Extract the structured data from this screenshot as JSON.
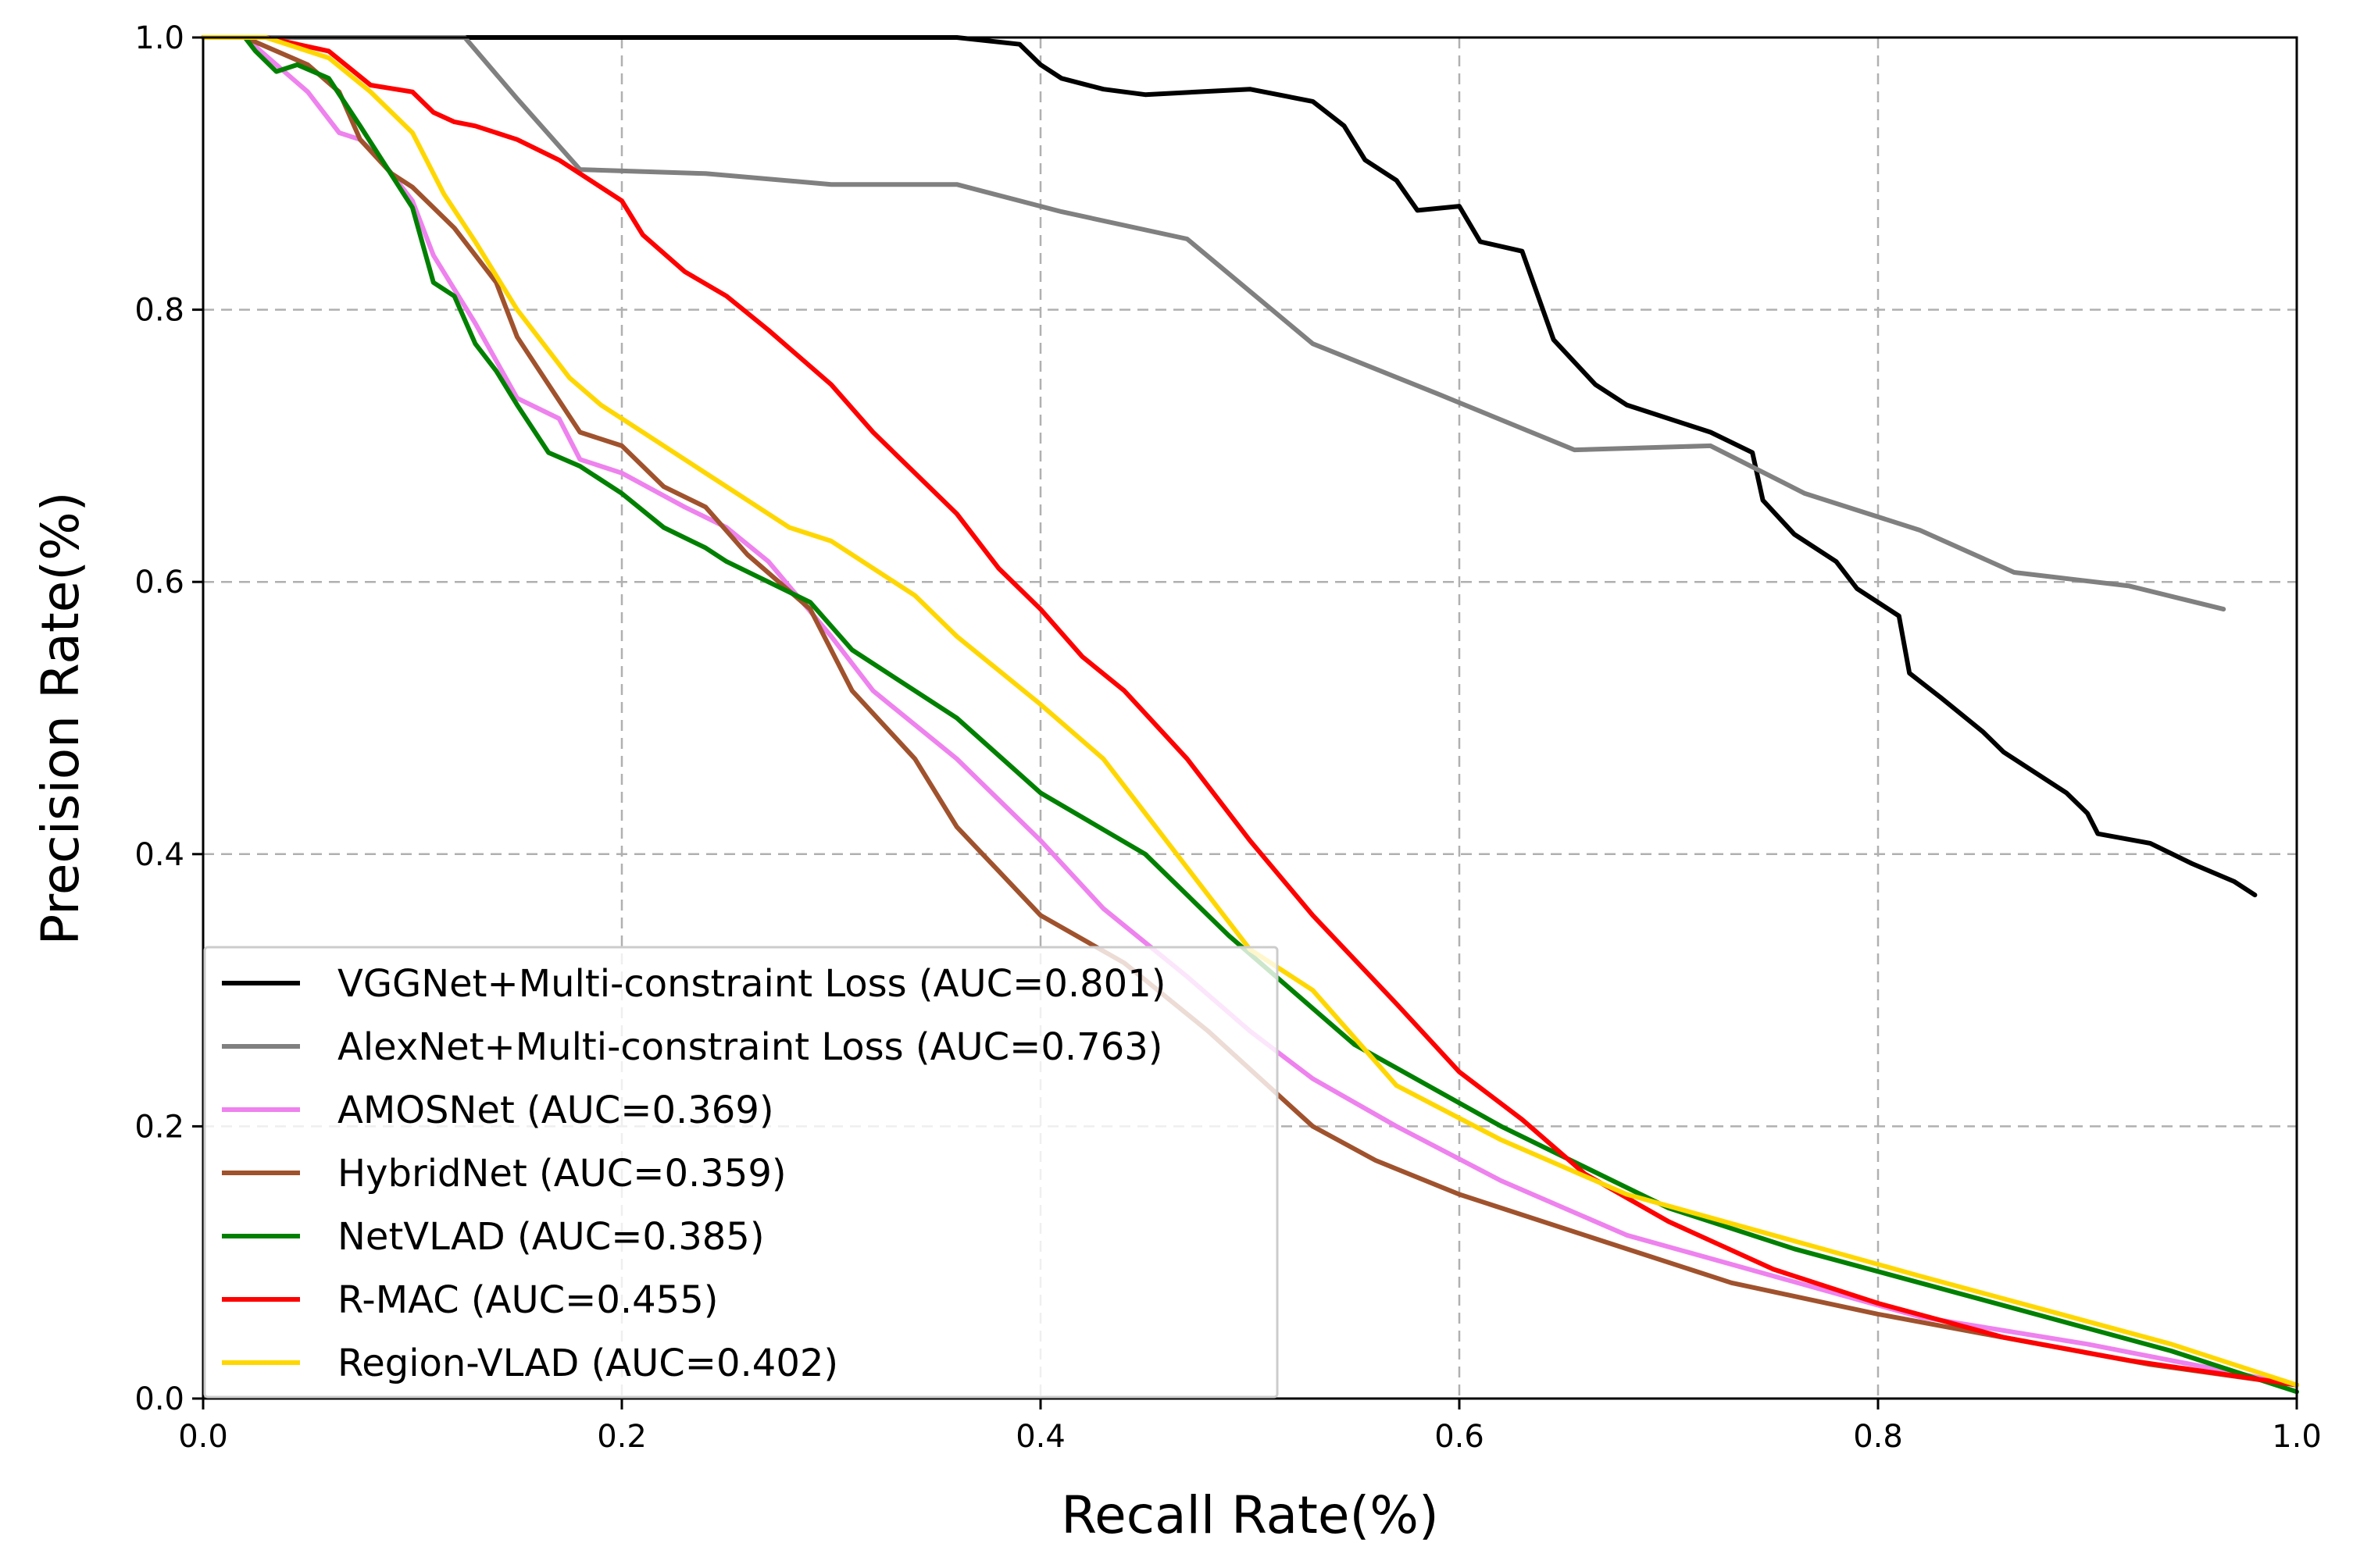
{
  "chart_data": {
    "type": "line",
    "title": "",
    "xlabel": "Recall Rate(%)",
    "ylabel": "Precision Rate(%)",
    "xlim": [
      0.0,
      1.0
    ],
    "ylim": [
      0.0,
      1.0
    ],
    "xticks": [
      "0.0",
      "0.2",
      "0.4",
      "0.6",
      "0.8",
      "1.0"
    ],
    "yticks": [
      "0.0",
      "0.2",
      "0.4",
      "0.6",
      "0.8",
      "1.0"
    ],
    "grid": true,
    "legend_position": "lower-left",
    "series": [
      {
        "name": "VGGNet+Multi-constraint Loss (AUC=0.801)",
        "color": "#000000",
        "x": [
          0.0,
          0.36,
          0.39,
          0.4,
          0.41,
          0.43,
          0.45,
          0.5,
          0.53,
          0.545,
          0.555,
          0.57,
          0.58,
          0.6,
          0.61,
          0.63,
          0.645,
          0.665,
          0.68,
          0.72,
          0.74,
          0.745,
          0.76,
          0.78,
          0.79,
          0.81,
          0.815,
          0.83,
          0.85,
          0.86,
          0.89,
          0.9,
          0.905,
          0.93,
          0.95,
          0.97,
          0.98
        ],
        "y": [
          1.0,
          1.0,
          0.995,
          0.98,
          0.97,
          0.962,
          0.958,
          0.962,
          0.953,
          0.935,
          0.91,
          0.895,
          0.873,
          0.876,
          0.85,
          0.843,
          0.778,
          0.745,
          0.73,
          0.71,
          0.695,
          0.66,
          0.635,
          0.615,
          0.595,
          0.575,
          0.533,
          0.515,
          0.49,
          0.475,
          0.445,
          0.43,
          0.415,
          0.408,
          0.393,
          0.38,
          0.37
        ],
        "style": "solid"
      },
      {
        "name": "AlexNet+Multi-constraint Loss (AUC=0.763)",
        "color": "#808080",
        "x": [
          0.0,
          0.125,
          0.15,
          0.18,
          0.24,
          0.3,
          0.36,
          0.41,
          0.47,
          0.53,
          0.59,
          0.655,
          0.72,
          0.765,
          0.82,
          0.865,
          0.92,
          0.965
        ],
        "y": [
          1.0,
          1.0,
          0.955,
          0.903,
          0.9,
          0.892,
          0.892,
          0.872,
          0.852,
          0.775,
          0.738,
          0.697,
          0.7,
          0.665,
          0.638,
          0.607,
          0.597,
          0.58
        ],
        "style": "solid"
      },
      {
        "name": "AMOSNet (AUC=0.369)",
        "color": "#ee82ee",
        "x": [
          0.0,
          0.02,
          0.05,
          0.065,
          0.075,
          0.085,
          0.1,
          0.11,
          0.13,
          0.15,
          0.17,
          0.18,
          0.2,
          0.23,
          0.25,
          0.27,
          0.3,
          0.32,
          0.36,
          0.4,
          0.43,
          0.47,
          0.5,
          0.53,
          0.57,
          0.62,
          0.68,
          0.75,
          0.82,
          0.9,
          1.0
        ],
        "y": [
          1.0,
          1.0,
          0.96,
          0.93,
          0.925,
          0.91,
          0.88,
          0.84,
          0.79,
          0.735,
          0.72,
          0.69,
          0.68,
          0.655,
          0.64,
          0.615,
          0.56,
          0.52,
          0.47,
          0.41,
          0.36,
          0.31,
          0.27,
          0.235,
          0.2,
          0.16,
          0.12,
          0.09,
          0.06,
          0.04,
          0.01
        ],
        "style": "solid"
      },
      {
        "name": "HybridNet (AUC=0.359)",
        "color": "#a0522d",
        "x": [
          0.0,
          0.02,
          0.05,
          0.065,
          0.075,
          0.09,
          0.1,
          0.12,
          0.14,
          0.15,
          0.165,
          0.18,
          0.2,
          0.22,
          0.24,
          0.26,
          0.29,
          0.31,
          0.34,
          0.36,
          0.4,
          0.44,
          0.48,
          0.53,
          0.56,
          0.6,
          0.67,
          0.73,
          0.8,
          0.87,
          0.93,
          1.0
        ],
        "y": [
          1.0,
          1.0,
          0.98,
          0.96,
          0.925,
          0.9,
          0.89,
          0.86,
          0.82,
          0.78,
          0.745,
          0.71,
          0.7,
          0.67,
          0.655,
          0.62,
          0.58,
          0.52,
          0.47,
          0.42,
          0.355,
          0.32,
          0.27,
          0.2,
          0.175,
          0.15,
          0.115,
          0.085,
          0.062,
          0.042,
          0.025,
          0.01
        ],
        "style": "solid"
      },
      {
        "name": "NetVLAD (AUC=0.385)",
        "color": "#008000",
        "x": [
          0.0,
          0.02,
          0.025,
          0.035,
          0.045,
          0.06,
          0.075,
          0.1,
          0.11,
          0.12,
          0.13,
          0.14,
          0.15,
          0.165,
          0.18,
          0.2,
          0.22,
          0.24,
          0.25,
          0.27,
          0.29,
          0.31,
          0.36,
          0.4,
          0.45,
          0.49,
          0.55,
          0.62,
          0.7,
          0.76,
          0.82,
          0.88,
          0.94,
          1.0
        ],
        "y": [
          1.0,
          1.0,
          0.99,
          0.975,
          0.98,
          0.97,
          0.935,
          0.875,
          0.82,
          0.81,
          0.775,
          0.755,
          0.73,
          0.695,
          0.685,
          0.665,
          0.64,
          0.625,
          0.615,
          0.6,
          0.585,
          0.55,
          0.5,
          0.445,
          0.4,
          0.34,
          0.26,
          0.2,
          0.14,
          0.11,
          0.085,
          0.06,
          0.035,
          0.005
        ],
        "style": "solid"
      },
      {
        "name": "R-MAC (AUC=0.455)",
        "color": "#ff0000",
        "x": [
          0.0,
          0.03,
          0.06,
          0.08,
          0.1,
          0.11,
          0.12,
          0.13,
          0.15,
          0.17,
          0.2,
          0.21,
          0.23,
          0.25,
          0.27,
          0.3,
          0.32,
          0.36,
          0.38,
          0.4,
          0.42,
          0.44,
          0.47,
          0.5,
          0.53,
          0.57,
          0.6,
          0.63,
          0.66,
          0.7,
          0.75,
          0.8,
          0.86,
          0.92,
          1.0
        ],
        "y": [
          1.0,
          1.0,
          0.99,
          0.965,
          0.96,
          0.945,
          0.938,
          0.935,
          0.925,
          0.91,
          0.88,
          0.855,
          0.828,
          0.81,
          0.785,
          0.745,
          0.71,
          0.65,
          0.61,
          0.58,
          0.545,
          0.52,
          0.47,
          0.41,
          0.355,
          0.29,
          0.24,
          0.205,
          0.165,
          0.13,
          0.095,
          0.07,
          0.045,
          0.028,
          0.01
        ],
        "style": "solid"
      },
      {
        "name": "Region-VLAD (AUC=0.402)",
        "color": "#ffd700",
        "x": [
          0.0,
          0.03,
          0.06,
          0.08,
          0.1,
          0.115,
          0.13,
          0.15,
          0.175,
          0.19,
          0.2,
          0.22,
          0.24,
          0.26,
          0.28,
          0.3,
          0.34,
          0.36,
          0.4,
          0.43,
          0.45,
          0.47,
          0.5,
          0.53,
          0.57,
          0.62,
          0.68,
          0.75,
          0.82,
          0.88,
          0.94,
          1.0
        ],
        "y": [
          1.0,
          1.0,
          0.985,
          0.96,
          0.93,
          0.885,
          0.85,
          0.8,
          0.75,
          0.73,
          0.72,
          0.7,
          0.68,
          0.66,
          0.64,
          0.63,
          0.59,
          0.56,
          0.51,
          0.47,
          0.43,
          0.39,
          0.33,
          0.3,
          0.23,
          0.19,
          0.15,
          0.12,
          0.09,
          0.065,
          0.04,
          0.01
        ],
        "style": "solid"
      }
    ]
  }
}
